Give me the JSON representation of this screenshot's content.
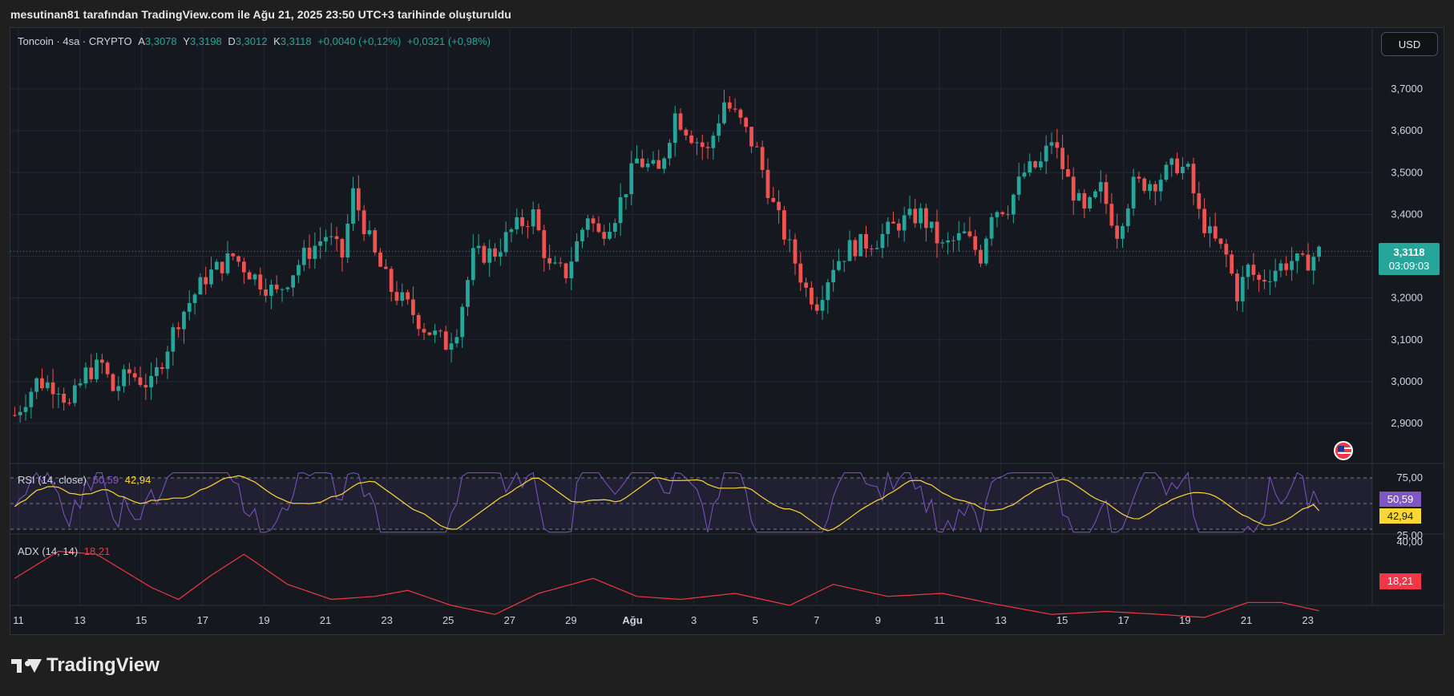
{
  "header": {
    "caption": "mesutinan81 tarafından TradingView.com ile Ağu 21, 2025 23:50 UTC+3 tarihinde oluşturuldu"
  },
  "legend": {
    "symbol": "Toncoin · 4sa · CRYPTO",
    "o_label": "A",
    "o_value": "3,3078",
    "h_label": "Y",
    "h_value": "3,3198",
    "l_label": "D",
    "l_value": "3,3012",
    "c_label": "K",
    "c_value": "3,3118",
    "change": "+0,0040 (+0,12%)",
    "change2": "+0,0321 (+0,98%)"
  },
  "currency_button": "USD",
  "price_tag": {
    "value": "3,3118",
    "countdown": "03:09:03"
  },
  "rsi": {
    "label": "RSI (14, close)",
    "value": "50,59",
    "ma": "42,94",
    "upper": "75,00",
    "lower": "25,00"
  },
  "adx": {
    "label": "ADX (14, 14)",
    "value": "18,21",
    "scale_label": "40,00"
  },
  "brand": {
    "name": "TradingView"
  },
  "colors": {
    "up": "#26a69a",
    "down": "#ef5350",
    "rsi": "#7e57c2",
    "rsi_ma": "#fdd835",
    "adx": "#f23645",
    "bg": "#15181f"
  },
  "chart_data": {
    "type": "candlestick",
    "title": "Toncoin · 4sa · CRYPTO",
    "y_ticks": [
      "3,7000",
      "3,6000",
      "3,5000",
      "3,4000",
      "3,3000",
      "3,2000",
      "3,1000",
      "3,0000",
      "2,9000"
    ],
    "ylim": [
      2.87,
      3.79
    ],
    "x_ticks": [
      "11",
      "13",
      "15",
      "17",
      "19",
      "21",
      "23",
      "25",
      "27",
      "29",
      "Ağu",
      "3",
      "5",
      "7",
      "9",
      "11",
      "13",
      "15",
      "17",
      "19",
      "21",
      "23"
    ],
    "close_path": [
      [
        0,
        2.92
      ],
      [
        4,
        3.0
      ],
      [
        8,
        2.99
      ],
      [
        10,
        2.94
      ],
      [
        13,
        3.02
      ],
      [
        16,
        3.04
      ],
      [
        18,
        2.98
      ],
      [
        21,
        3.02
      ],
      [
        25,
        2.99
      ],
      [
        30,
        3.15
      ],
      [
        35,
        3.25
      ],
      [
        40,
        3.3
      ],
      [
        44,
        3.25
      ],
      [
        48,
        3.21
      ],
      [
        53,
        3.3
      ],
      [
        57,
        3.35
      ],
      [
        60,
        3.3
      ],
      [
        62,
        3.45
      ],
      [
        66,
        3.3
      ],
      [
        69,
        3.22
      ],
      [
        72,
        3.18
      ],
      [
        75,
        3.13
      ],
      [
        79,
        3.09
      ],
      [
        81,
        3.13
      ],
      [
        84,
        3.3
      ],
      [
        88,
        3.31
      ],
      [
        91,
        3.36
      ],
      [
        95,
        3.4
      ],
      [
        98,
        3.27
      ],
      [
        101,
        3.26
      ],
      [
        105,
        3.4
      ],
      [
        107,
        3.35
      ],
      [
        110,
        3.4
      ],
      [
        114,
        3.53
      ],
      [
        118,
        3.5
      ],
      [
        121,
        3.64
      ],
      [
        124,
        3.59
      ],
      [
        127,
        3.55
      ],
      [
        130,
        3.67
      ],
      [
        133,
        3.62
      ],
      [
        136,
        3.55
      ],
      [
        139,
        3.42
      ],
      [
        142,
        3.32
      ],
      [
        145,
        3.22
      ],
      [
        147,
        3.19
      ],
      [
        150,
        3.28
      ],
      [
        153,
        3.32
      ],
      [
        158,
        3.34
      ],
      [
        162,
        3.38
      ],
      [
        166,
        3.4
      ],
      [
        170,
        3.32
      ],
      [
        174,
        3.35
      ],
      [
        177,
        3.3
      ],
      [
        179,
        3.41
      ],
      [
        182,
        3.42
      ],
      [
        185,
        3.5
      ],
      [
        188,
        3.52
      ],
      [
        190,
        3.58
      ],
      [
        193,
        3.48
      ],
      [
        196,
        3.4
      ],
      [
        199,
        3.46
      ],
      [
        202,
        3.36
      ],
      [
        205,
        3.47
      ],
      [
        209,
        3.48
      ],
      [
        213,
        3.52
      ],
      [
        215,
        3.5
      ],
      [
        217,
        3.4
      ],
      [
        219,
        3.35
      ],
      [
        222,
        3.3
      ],
      [
        224,
        3.21
      ],
      [
        226,
        3.27
      ],
      [
        228,
        3.24
      ],
      [
        231,
        3.27
      ],
      [
        234,
        3.29
      ],
      [
        236,
        3.28
      ],
      [
        239,
        3.31
      ]
    ],
    "rsi": {
      "value": 50.59,
      "ma": 42.94,
      "upper": 75,
      "lower": 25
    },
    "adx": {
      "value": 18.21
    }
  }
}
